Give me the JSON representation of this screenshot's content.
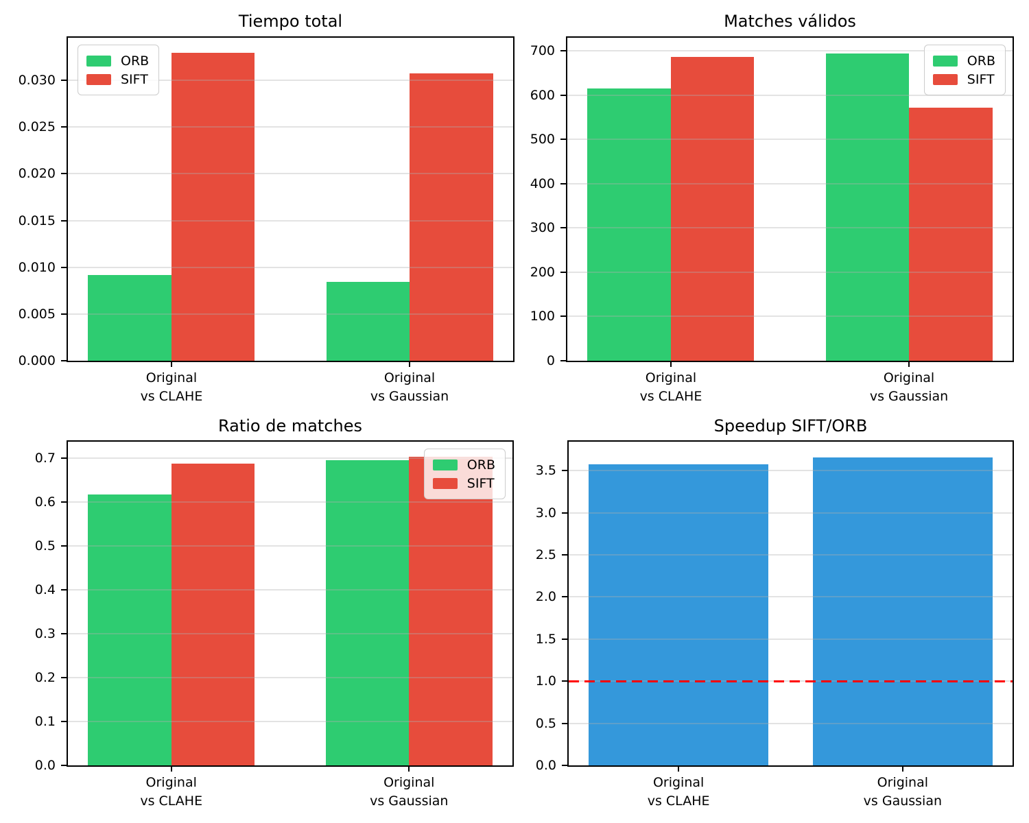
{
  "figure": {
    "background": "#ffffff",
    "grid_color": "#b0b0b0",
    "spine_color": "#000000"
  },
  "legend_labels": {
    "orb": "ORB",
    "sift": "SIFT"
  },
  "colors": {
    "orb": "#2ecc71",
    "sift": "#e74c3c",
    "speedup": "#3498db",
    "reference": "#ff0000"
  },
  "chart_data": [
    {
      "id": "tiempo-total",
      "type": "bar",
      "title": "Tiempo total",
      "categories": [
        "Original\nvs CLAHE",
        "Original\nvs Gaussian"
      ],
      "series": [
        {
          "name": "ORB",
          "color": "#2ecc71",
          "values": [
            0.0092,
            0.0084
          ]
        },
        {
          "name": "SIFT",
          "color": "#e74c3c",
          "values": [
            0.0329,
            0.0307
          ]
        }
      ],
      "ylim": [
        0,
        0.03455
      ],
      "ytick_values": [
        0,
        0.005,
        0.01,
        0.015,
        0.02,
        0.025,
        0.03
      ],
      "ytick_labels": [
        "0.000",
        "0.005",
        "0.010",
        "0.015",
        "0.020",
        "0.025",
        "0.030"
      ],
      "grid": true,
      "legend": {
        "position": "upper-left"
      }
    },
    {
      "id": "matches-validos",
      "type": "bar",
      "title": "Matches válidos",
      "categories": [
        "Original\nvs CLAHE",
        "Original\nvs Gaussian"
      ],
      "series": [
        {
          "name": "ORB",
          "color": "#2ecc71",
          "values": [
            616,
            695
          ]
        },
        {
          "name": "SIFT",
          "color": "#e74c3c",
          "values": [
            687,
            572
          ]
        }
      ],
      "ylim": [
        0,
        730
      ],
      "ytick_values": [
        0,
        100,
        200,
        300,
        400,
        500,
        600,
        700
      ],
      "ytick_labels": [
        "0",
        "100",
        "200",
        "300",
        "400",
        "500",
        "600",
        "700"
      ],
      "grid": true,
      "legend": {
        "position": "upper-right"
      }
    },
    {
      "id": "ratio-de-matches",
      "type": "bar",
      "title": "Ratio de matches",
      "categories": [
        "Original\nvs CLAHE",
        "Original\nvs Gaussian"
      ],
      "series": [
        {
          "name": "ORB",
          "color": "#2ecc71",
          "values": [
            0.616,
            0.695
          ]
        },
        {
          "name": "SIFT",
          "color": "#e74c3c",
          "values": [
            0.687,
            0.702
          ]
        }
      ],
      "ylim": [
        0,
        0.737
      ],
      "ytick_values": [
        0,
        0.1,
        0.2,
        0.3,
        0.4,
        0.5,
        0.6,
        0.7
      ],
      "ytick_labels": [
        "0.0",
        "0.1",
        "0.2",
        "0.3",
        "0.4",
        "0.5",
        "0.6",
        "0.7"
      ],
      "grid": true,
      "legend": {
        "position": "upper-right"
      }
    },
    {
      "id": "speedup-sift-orb",
      "type": "bar",
      "title": "Speedup SIFT/ORB",
      "categories": [
        "Original\nvs CLAHE",
        "Original\nvs Gaussian"
      ],
      "series": [
        {
          "name": "Speedup",
          "color": "#3498db",
          "values": [
            3.58,
            3.66
          ]
        }
      ],
      "ylim": [
        0,
        3.845
      ],
      "ytick_values": [
        0,
        0.5,
        1.0,
        1.5,
        2.0,
        2.5,
        3.0,
        3.5
      ],
      "ytick_labels": [
        "0.0",
        "0.5",
        "1.0",
        "1.5",
        "2.0",
        "2.5",
        "3.0",
        "3.5"
      ],
      "grid": true,
      "legend": null,
      "reference_line": {
        "y": 1.0,
        "color": "#ff0000",
        "style": "dashed"
      }
    }
  ]
}
